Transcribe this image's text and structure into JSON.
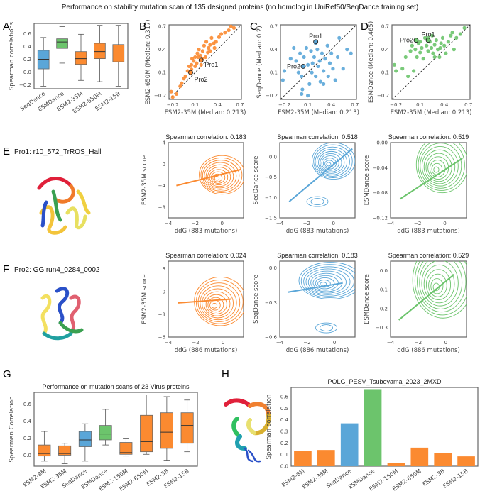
{
  "title": "Performance on stability mutation scan of 135 designed proteins (no homolog in UniRef50/SeqDance training set)",
  "colors": {
    "seqdance": "#5aa6d8",
    "esmdance": "#6cc46c",
    "esm2": "#fb8a30",
    "seqdance_dark": "#2f6fa0",
    "esmdance_dark": "#2f8a3a"
  },
  "panel_labels": {
    "A": "A",
    "B": "B",
    "C": "C",
    "D": "D",
    "E": "E",
    "F": "F",
    "G": "G",
    "H": "H"
  },
  "pro_labels": {
    "E": "Pro1: r10_572_TrROS_Hall",
    "F": "Pro2: GG|run4_0284_0002"
  },
  "chart_data": [
    {
      "id": "A",
      "type": "box",
      "ylabel": "Spearman correlations",
      "ylim": [
        -0.26,
        0.76
      ],
      "yticks": [
        -0.2,
        0.0,
        0.2,
        0.4,
        0.6
      ],
      "categories": [
        "SeqDance",
        "ESMDance",
        "ESM2-35M",
        "ESM2-650M",
        "ESM2-15B"
      ],
      "color_keys": [
        "seqdance",
        "esmdance",
        "esm2",
        "esm2",
        "esm2"
      ],
      "stats": [
        [
          -0.22,
          0.05,
          0.2,
          0.34,
          0.54
        ],
        [
          0.14,
          0.37,
          0.47,
          0.52,
          0.71
        ],
        [
          -0.13,
          0.12,
          0.21,
          0.32,
          0.59
        ],
        [
          -0.15,
          0.21,
          0.32,
          0.45,
          0.73
        ],
        [
          -0.22,
          0.16,
          0.3,
          0.43,
          0.73
        ]
      ]
    },
    {
      "id": "B",
      "type": "scatter",
      "xlabel": "ESM2-35M (Median: 0.213)",
      "ylabel": "ESM2-650M (Median: 0.317)",
      "xlim": [
        -0.25,
        0.72
      ],
      "ylim": [
        -0.25,
        0.72
      ],
      "ticks": [
        -0.2,
        0.1,
        0.4,
        0.7
      ],
      "color_key": "esm2",
      "points": [
        [
          -0.22,
          -0.15
        ],
        [
          -0.2,
          -0.22
        ],
        [
          -0.15,
          -0.18
        ],
        [
          -0.1,
          -0.08
        ],
        [
          -0.08,
          -0.04
        ],
        [
          -0.05,
          0.02
        ],
        [
          -0.03,
          0.05
        ],
        [
          0,
          0.12
        ],
        [
          0.02,
          0.18
        ],
        [
          0.05,
          0.2
        ],
        [
          0.06,
          0.28
        ],
        [
          0.08,
          0.25
        ],
        [
          0.1,
          0.3
        ],
        [
          0.12,
          0.22
        ],
        [
          0.13,
          0.35
        ],
        [
          0.15,
          0.4
        ],
        [
          0.17,
          0.32
        ],
        [
          0.2,
          0.38
        ],
        [
          0.22,
          0.45
        ],
        [
          0.24,
          0.3
        ],
        [
          0.25,
          0.5
        ],
        [
          0.28,
          0.42
        ],
        [
          0.3,
          0.38
        ],
        [
          0.32,
          0.55
        ],
        [
          0.35,
          0.48
        ],
        [
          0.38,
          0.5
        ],
        [
          0.42,
          0.56
        ],
        [
          0.45,
          0.6
        ],
        [
          0.5,
          0.62
        ],
        [
          0.55,
          0.65
        ],
        [
          0.58,
          0.7
        ],
        [
          0.62,
          0.68
        ],
        [
          0.18,
          0.2
        ],
        [
          0.27,
          0.36
        ],
        [
          0.1,
          0.18
        ],
        [
          0.14,
          0.3
        ],
        [
          0.2,
          0.28
        ],
        [
          0.3,
          0.46
        ],
        [
          0.36,
          0.42
        ],
        [
          0.05,
          0.14
        ]
      ],
      "highlights": [
        {
          "label": "Pro1",
          "x": 0.18,
          "y": 0.26
        },
        {
          "label": "Pro2",
          "x": 0.04,
          "y": 0.1
        }
      ]
    },
    {
      "id": "C",
      "type": "scatter",
      "xlabel": "ESM2-35M (Median: 0.213)",
      "ylabel": "SeqDance (Median: 0.2)",
      "xlim": [
        -0.25,
        0.72
      ],
      "ylim": [
        -0.25,
        0.72
      ],
      "ticks": [
        -0.2,
        0.1,
        0.4,
        0.7
      ],
      "color_key": "seqdance",
      "points": [
        [
          -0.22,
          0.0
        ],
        [
          -0.2,
          0.12
        ],
        [
          -0.12,
          0.28
        ],
        [
          -0.08,
          0.42
        ],
        [
          -0.05,
          0.25
        ],
        [
          -0.02,
          0.1
        ],
        [
          0.0,
          0.35
        ],
        [
          0.02,
          0.05
        ],
        [
          0.03,
          -0.12
        ],
        [
          0.05,
          0.3
        ],
        [
          0.08,
          0.42
        ],
        [
          0.1,
          0.2
        ],
        [
          0.12,
          -0.05
        ],
        [
          0.14,
          0.38
        ],
        [
          0.15,
          0.1
        ],
        [
          0.18,
          0.3
        ],
        [
          0.2,
          0.05
        ],
        [
          0.22,
          0.4
        ],
        [
          0.23,
          0.18
        ],
        [
          0.25,
          0.25
        ],
        [
          0.26,
          -0.02
        ],
        [
          0.28,
          0.35
        ],
        [
          0.3,
          0.12
        ],
        [
          0.32,
          0.28
        ],
        [
          0.35,
          0.45
        ],
        [
          0.36,
          0.05
        ],
        [
          0.38,
          0.22
        ],
        [
          0.4,
          0.35
        ],
        [
          0.42,
          0.15
        ],
        [
          0.45,
          0.0
        ],
        [
          0.48,
          0.3
        ],
        [
          0.5,
          0.55
        ],
        [
          0.55,
          0.15
        ],
        [
          0.6,
          0.4
        ],
        [
          0.65,
          0.35
        ],
        [
          0.1,
          -0.2
        ],
        [
          0.02,
          -0.18
        ],
        [
          0.3,
          -0.05
        ],
        [
          0.16,
          0.22
        ],
        [
          0.2,
          0.48
        ]
      ],
      "highlights": [
        {
          "label": "Pro1",
          "x": 0.2,
          "y": 0.5
        },
        {
          "label": "Pro2",
          "x": 0.04,
          "y": 0.18
        }
      ]
    },
    {
      "id": "D",
      "type": "scatter",
      "xlabel": "ESM2-35M (Median: 0.213)",
      "ylabel": "ESMDance (Median: 0.465)",
      "xlim": [
        -0.25,
        0.72
      ],
      "ylim": [
        -0.25,
        0.72
      ],
      "ticks": [
        -0.2,
        0.1,
        0.4,
        0.7
      ],
      "color_key": "esmdance",
      "points": [
        [
          -0.22,
          0.2
        ],
        [
          -0.2,
          0.12
        ],
        [
          -0.12,
          0.15
        ],
        [
          -0.08,
          0.3
        ],
        [
          -0.05,
          0.05
        ],
        [
          -0.02,
          0.38
        ],
        [
          0.0,
          0.45
        ],
        [
          0.02,
          0.12
        ],
        [
          0.04,
          0.4
        ],
        [
          0.06,
          0.3
        ],
        [
          0.08,
          0.48
        ],
        [
          0.1,
          0.36
        ],
        [
          0.12,
          0.42
        ],
        [
          0.14,
          0.28
        ],
        [
          0.16,
          0.55
        ],
        [
          0.18,
          0.45
        ],
        [
          0.2,
          0.38
        ],
        [
          0.22,
          0.5
        ],
        [
          0.24,
          0.42
        ],
        [
          0.25,
          0.58
        ],
        [
          0.26,
          0.35
        ],
        [
          0.28,
          0.46
        ],
        [
          0.3,
          0.52
        ],
        [
          0.32,
          0.4
        ],
        [
          0.34,
          0.3
        ],
        [
          0.36,
          0.48
        ],
        [
          0.38,
          0.55
        ],
        [
          0.4,
          0.45
        ],
        [
          0.42,
          0.35
        ],
        [
          0.45,
          0.5
        ],
        [
          0.48,
          0.58
        ],
        [
          0.5,
          0.62
        ],
        [
          0.52,
          0.4
        ],
        [
          0.55,
          0.55
        ],
        [
          0.6,
          0.6
        ],
        [
          0.65,
          0.68
        ],
        [
          0.28,
          0.3
        ],
        [
          0.2,
          0.55
        ],
        [
          0.1,
          0.5
        ],
        [
          0.35,
          0.42
        ]
      ],
      "highlights": [
        {
          "label": "Pro1",
          "x": 0.2,
          "y": 0.52
        },
        {
          "label": "Pro2",
          "x": 0.05,
          "y": 0.52
        }
      ]
    },
    {
      "id": "E1",
      "type": "kde",
      "title": "Spearman correlation: 0.183",
      "xlabel": "ddG (883 mutations)",
      "ylabel": "ESM2-35M score",
      "xlim": [
        -4,
        1.6
      ],
      "ylim": [
        -10,
        4
      ],
      "xticks": [
        -4,
        -2,
        0
      ],
      "yticks": [
        -8,
        -4,
        0,
        4
      ],
      "color_key": "esm2",
      "peak": [
        0,
        -2
      ],
      "spread": [
        1.7,
        3.6
      ],
      "fit": [
        [
          -3.4,
          -4
        ],
        [
          1.4,
          -1
        ]
      ]
    },
    {
      "id": "E2",
      "type": "kde",
      "title": "Spearman correlation: 0.518",
      "xlabel": "ddG (883 mutations)",
      "ylabel": "SeqDance score",
      "xlim": [
        -4,
        1.6
      ],
      "ylim": [
        -1.5,
        0.35
      ],
      "xticks": [
        -4,
        -2,
        0
      ],
      "yticks": [
        -1.5,
        -1.0,
        -0.5,
        0.0
      ],
      "color_key": "seqdance",
      "peak": [
        0,
        -0.1
      ],
      "spread": [
        1.6,
        0.45
      ],
      "secondary": [
        -1.2,
        -1.1
      ],
      "fit": [
        [
          -3.3,
          -1.1
        ],
        [
          1.4,
          0.2
        ]
      ]
    },
    {
      "id": "E3",
      "type": "kde",
      "title": "Spearman correlation: 0.519",
      "xlabel": "ddG (883 mutations)",
      "ylabel": "ESMDance score",
      "xlim": [
        -4,
        1.6
      ],
      "ylim": [
        -0.12,
        0.0
      ],
      "xticks": [
        -4,
        -2,
        0
      ],
      "yticks": [
        -0.12,
        -0.08,
        -0.04,
        0.0
      ],
      "color_key": "esmdance",
      "peak": [
        -0.2,
        -0.035
      ],
      "spread": [
        1.9,
        0.045
      ],
      "fit": [
        [
          -3.3,
          -0.09
        ],
        [
          1.3,
          -0.025
        ]
      ]
    },
    {
      "id": "F1",
      "type": "kde",
      "title": "Spearman correlation: 0.024",
      "xlabel": "ddG (886 mutations)",
      "ylabel": "ESM2-35M score",
      "xlim": [
        -4,
        1.5
      ],
      "ylim": [
        -6,
        4
      ],
      "xticks": [
        -4,
        -2,
        0
      ],
      "yticks": [
        -6,
        -3,
        0,
        3
      ],
      "color_key": "esm2",
      "peak": [
        -0.2,
        -1.3
      ],
      "spread": [
        1.9,
        3.2
      ],
      "fit": [
        [
          -3.3,
          -1.5
        ],
        [
          0.6,
          -1
        ]
      ]
    },
    {
      "id": "F2",
      "type": "kde",
      "title": "Spearman correlation: 0.183",
      "xlabel": "ddG (886 mutations)",
      "ylabel": "SeqDance score",
      "xlim": [
        -4,
        1.5
      ],
      "ylim": [
        -0.6,
        0.06
      ],
      "xticks": [
        -4,
        -2,
        0
      ],
      "yticks": [
        -0.6,
        -0.3,
        0.0
      ],
      "color_key": "seqdance",
      "peak": [
        -0.3,
        -0.11
      ],
      "spread": [
        2.3,
        0.16
      ],
      "secondary": [
        -0.6,
        -0.52
      ],
      "fit": [
        [
          -3.4,
          -0.21
        ],
        [
          0.6,
          -0.13
        ]
      ]
    },
    {
      "id": "F3",
      "type": "kde",
      "title": "Spearman correlation: 0.529",
      "xlabel": "ddG (886 mutations)",
      "ylabel": "ESMDance score",
      "xlim": [
        -4,
        1.5
      ],
      "ylim": [
        -0.35,
        0.05
      ],
      "xticks": [
        -4,
        -2,
        0
      ],
      "yticks": [
        -0.3,
        -0.2,
        -0.1,
        0.0
      ],
      "color_key": "esmdance",
      "peak": [
        -0.2,
        -0.05
      ],
      "spread": [
        2.2,
        0.2
      ],
      "fit": [
        [
          -3.4,
          -0.26
        ],
        [
          0.6,
          -0.02
        ]
      ]
    },
    {
      "id": "G",
      "type": "box",
      "title": "Performance on mutation scans of 23 Virus proteins",
      "ylabel": "Spearman Correlation",
      "ylim": [
        -0.13,
        0.74
      ],
      "yticks": [
        0.0,
        0.2,
        0.4,
        0.6
      ],
      "categories": [
        "ESM2-8M",
        "ESM2-35M",
        "SeqDance",
        "ESMDance",
        "ESM2-150M",
        "ESM2-650M",
        "ESM2-3B",
        "ESM2-15B"
      ],
      "color_keys": [
        "esm2",
        "esm2",
        "seqdance",
        "esmdance",
        "esm2",
        "esm2",
        "esm2",
        "esm2"
      ],
      "stats": [
        [
          -0.07,
          -0.01,
          0.02,
          0.12,
          0.28
        ],
        [
          -0.1,
          0.0,
          0.02,
          0.11,
          0.14
        ],
        [
          -0.07,
          0.1,
          0.18,
          0.28,
          0.37
        ],
        [
          0.12,
          0.18,
          0.25,
          0.35,
          0.54
        ],
        [
          -0.01,
          0.01,
          0.03,
          0.15,
          0.2
        ],
        [
          0.01,
          0.04,
          0.16,
          0.47,
          0.71
        ],
        [
          -0.06,
          0.08,
          0.27,
          0.5,
          0.69
        ],
        [
          0.04,
          0.14,
          0.35,
          0.5,
          0.65
        ]
      ]
    },
    {
      "id": "H",
      "type": "bar",
      "title": "POLG_PESV_Tsuboyama_2023_2MXD",
      "ylabel": "Spearman correlation",
      "ylim": [
        0,
        0.68
      ],
      "yticks": [
        0.0,
        0.1,
        0.2,
        0.3,
        0.4,
        0.5,
        0.6
      ],
      "categories": [
        "ESM2-8M",
        "ESM2-35M",
        "SeqDance",
        "ESMDance",
        "ESM2-150M",
        "ESM2-650M",
        "ESM2-3B",
        "ESM2-15B"
      ],
      "color_keys": [
        "esm2",
        "esm2",
        "seqdance",
        "esmdance",
        "esm2",
        "esm2",
        "esm2",
        "esm2"
      ],
      "values": [
        0.13,
        0.14,
        0.37,
        0.665,
        0.03,
        0.16,
        0.115,
        0.085
      ]
    }
  ]
}
